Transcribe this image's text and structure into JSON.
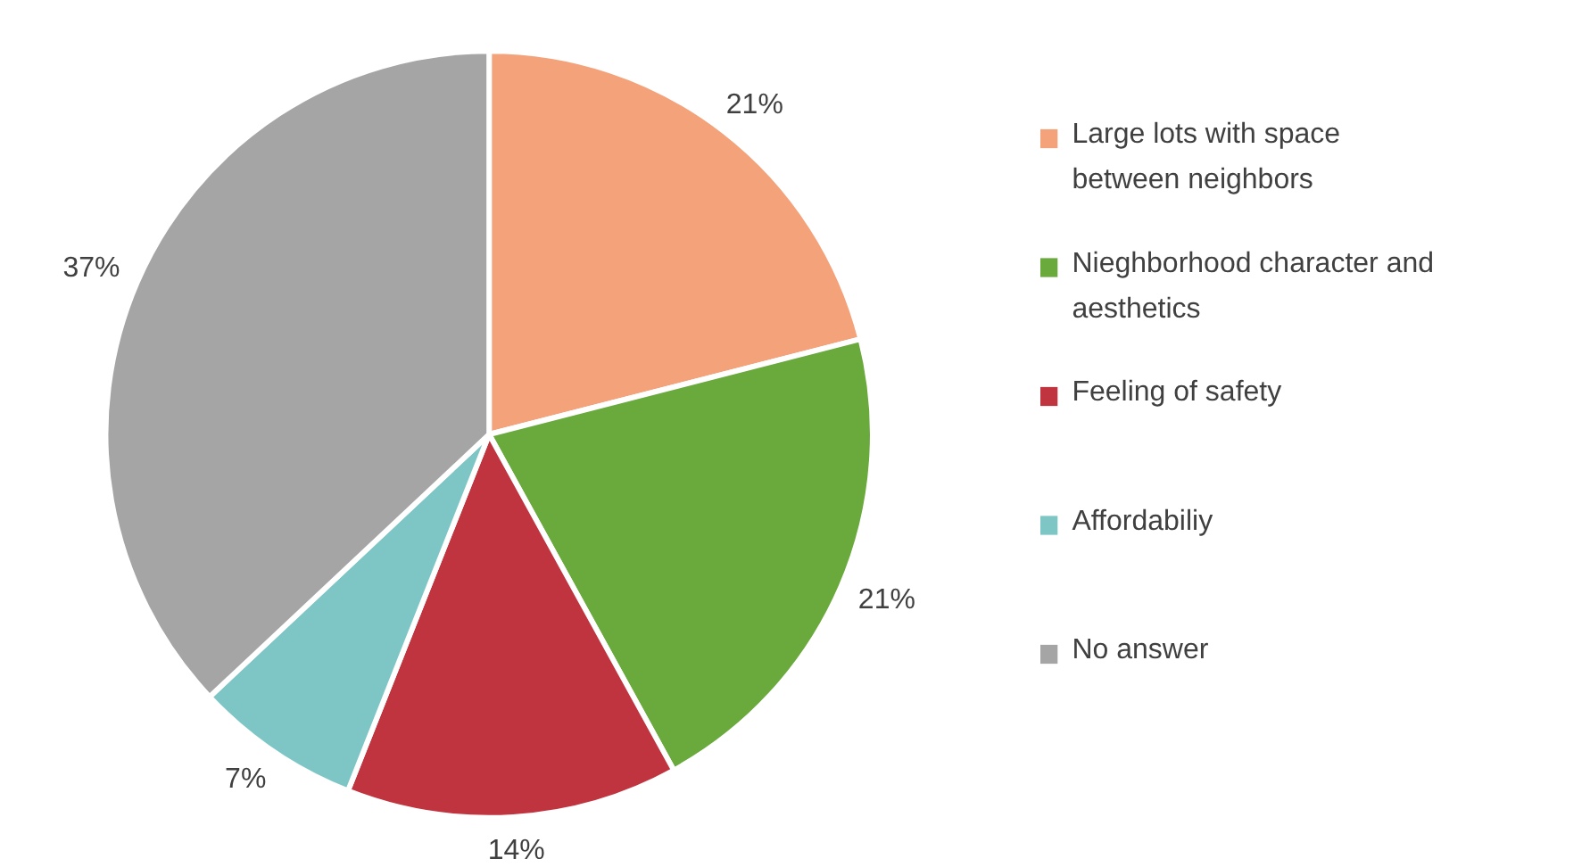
{
  "chart_data": {
    "type": "pie",
    "categories": [
      "Large lots with space between neighbors",
      "Nieghborhood character and aesthetics",
      "Feeling of safety",
      "Affordabiliy",
      "No answer"
    ],
    "values": [
      21,
      21,
      14,
      7,
      37
    ],
    "value_labels": [
      "21%",
      "21%",
      "14%",
      "7%",
      "37%"
    ],
    "colors": [
      "#f4a27a",
      "#6aa93c",
      "#c0343f",
      "#7ec6c6",
      "#a5a5a5"
    ],
    "legend": "right"
  }
}
